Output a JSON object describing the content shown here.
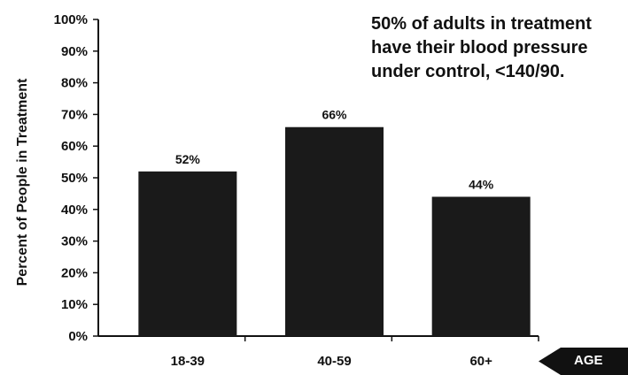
{
  "chart_data": {
    "type": "bar",
    "categories": [
      "18-39",
      "40-59",
      "60+"
    ],
    "values": [
      52,
      66,
      44
    ],
    "value_labels": [
      "52%",
      "66%",
      "44%"
    ],
    "title": "",
    "xlabel": "",
    "ylabel": "Percent of People in Treatment",
    "ylim": [
      0,
      100
    ],
    "yticks": [
      "0%",
      "10%",
      "20%",
      "30%",
      "40%",
      "50%",
      "60%",
      "70%",
      "80%",
      "90%",
      "100%"
    ],
    "grid": false,
    "bar_color": "#1a1a1a",
    "annotation": [
      "50% of adults in treatment",
      "have their blood pressure",
      "under control, <140/90."
    ],
    "axis_tag": {
      "label": "AGE",
      "icon": "left-arrow-icon",
      "color": "#111111"
    }
  }
}
